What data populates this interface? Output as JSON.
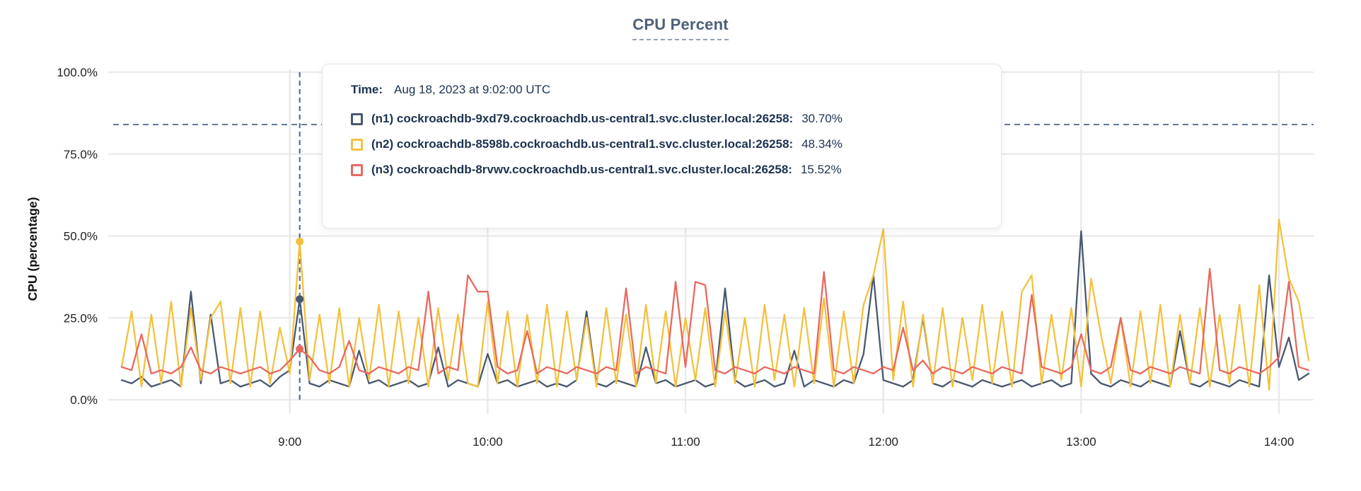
{
  "title": {
    "text": "CPU Percent"
  },
  "tooltip": {
    "time_label": "Time:",
    "time_value": "Aug 18, 2023 at 9:02:00 UTC",
    "series": [
      {
        "label": "(n1) cockroachdb-9xd79.cockroachdb.us-central1.svc.cluster.local:26258:",
        "value": "30.70%",
        "color": "#485870"
      },
      {
        "label": "(n2) cockroachdb-8598b.cockroachdb.us-central1.svc.cluster.local:26258:",
        "value": "48.34%",
        "color": "#f3c13d"
      },
      {
        "label": "(n3) cockroachdb-8rvwv.cockroachdb.us-central1.svc.cluster.local:26258:",
        "value": "15.52%",
        "color": "#e8685f"
      }
    ]
  },
  "chart_data": {
    "type": "line",
    "title": "CPU Percent",
    "xlabel": "",
    "ylabel": "CPU (percentage)",
    "ylim": [
      0,
      100
    ],
    "grid": true,
    "legend_position": "tooltip-overlay",
    "y_ticks": [
      {
        "value": 100,
        "label": "100.0%"
      },
      {
        "value": 75,
        "label": "75.0%"
      },
      {
        "value": 50,
        "label": "50.0%"
      },
      {
        "value": 25,
        "label": "25.0%"
      },
      {
        "value": 0,
        "label": "0.0%"
      }
    ],
    "x_ticks": [
      {
        "minutes": 540,
        "label": "9:00"
      },
      {
        "minutes": 600,
        "label": "10:00"
      },
      {
        "minutes": 660,
        "label": "11:00"
      },
      {
        "minutes": 720,
        "label": "12:00"
      },
      {
        "minutes": 780,
        "label": "13:00"
      },
      {
        "minutes": 840,
        "label": "14:00"
      }
    ],
    "x_start_minutes": 489,
    "x_step_minutes": 3,
    "threshold_line_percent": 84,
    "hover": {
      "index": 18,
      "time_label": "Aug 18, 2023 at 9:02:00 UTC"
    },
    "series": [
      {
        "id": "n1",
        "host": "cockroachdb-9xd79.cockroachdb.us-central1.svc.cluster.local:26258",
        "color": "#485870",
        "hover_value_percent": 30.7,
        "values": [
          6,
          5,
          7,
          4,
          5,
          6,
          4,
          33,
          5,
          26,
          5,
          6,
          4,
          5,
          6,
          4,
          7,
          9,
          30.7,
          5,
          4,
          6,
          5,
          4,
          15,
          5,
          6,
          4,
          5,
          6,
          4,
          5,
          16,
          4,
          6,
          5,
          4,
          14,
          5,
          6,
          4,
          5,
          6,
          4,
          5,
          4,
          6,
          27,
          5,
          4,
          6,
          5,
          4,
          16,
          5,
          6,
          4,
          5,
          6,
          4,
          5,
          34,
          6,
          4,
          5,
          6,
          4,
          5,
          15,
          4,
          6,
          5,
          4,
          6,
          5,
          14,
          38,
          6,
          5,
          4,
          6,
          25,
          5,
          4,
          6,
          5,
          4,
          6,
          5,
          4,
          5,
          6,
          4,
          5,
          6,
          4,
          5,
          51.5,
          8,
          5,
          4,
          6,
          5,
          4,
          6,
          5,
          4,
          21,
          5,
          4,
          6,
          5,
          4,
          6,
          5,
          4,
          38,
          10,
          19,
          6,
          8
        ]
      },
      {
        "id": "n2",
        "host": "cockroachdb-8598b.cockroachdb.us-central1.svc.cluster.local:26258",
        "color": "#f3c13d",
        "hover_value_percent": 48.34,
        "values": [
          10,
          27,
          4,
          26,
          5,
          30,
          4,
          28,
          6,
          25,
          30,
          5,
          28,
          4,
          27,
          5,
          22,
          8,
          48.3,
          6,
          26,
          5,
          28,
          4,
          25,
          6,
          29,
          4,
          27,
          5,
          25,
          4,
          28,
          6,
          26,
          5,
          4,
          30,
          5,
          27,
          4,
          26,
          5,
          29,
          4,
          27,
          6,
          25,
          4,
          28,
          5,
          26,
          4,
          29,
          5,
          27,
          4,
          25,
          6,
          28,
          4,
          27,
          5,
          25,
          4,
          29,
          6,
          26,
          4,
          28,
          5,
          31,
          4,
          27,
          5,
          29,
          38,
          52,
          6,
          30,
          4,
          26,
          5,
          28,
          4,
          25,
          6,
          29,
          5,
          27,
          4,
          33,
          38,
          5,
          26,
          6,
          28,
          4,
          37,
          20,
          5,
          25,
          4,
          27,
          5,
          29,
          4,
          26,
          5,
          28,
          4,
          26,
          5,
          29,
          4,
          35,
          3,
          55,
          37,
          30,
          12
        ]
      },
      {
        "id": "n3",
        "host": "cockroachdb-8rvwv.cockroachdb.us-central1.svc.cluster.local:26258",
        "color": "#e8685f",
        "hover_value_percent": 15.52,
        "values": [
          10,
          9,
          20,
          8,
          9,
          8,
          10,
          16,
          9,
          8,
          10,
          9,
          8,
          9,
          10,
          8,
          9,
          12,
          15.5,
          13,
          9,
          8,
          10,
          18,
          9,
          8,
          10,
          9,
          8,
          10,
          9,
          33,
          8,
          10,
          9,
          38,
          33,
          33,
          10,
          8,
          9,
          21,
          8,
          10,
          9,
          8,
          10,
          9,
          8,
          10,
          9,
          34,
          8,
          10,
          9,
          8,
          36,
          10,
          36,
          35,
          9,
          8,
          10,
          9,
          8,
          10,
          9,
          8,
          10,
          9,
          8,
          39,
          9,
          8,
          10,
          9,
          8,
          10,
          9,
          22,
          9,
          12,
          8,
          10,
          9,
          8,
          10,
          9,
          8,
          10,
          9,
          8,
          32,
          10,
          9,
          8,
          10,
          20,
          9,
          8,
          10,
          25,
          9,
          8,
          10,
          9,
          8,
          10,
          9,
          8,
          40,
          9,
          8,
          10,
          9,
          8,
          10,
          13,
          36,
          10,
          9
        ]
      }
    ],
    "annotations": {
      "threshold_line_style": "dashed",
      "hover_line_style": "dashed-vertical"
    }
  },
  "colors": {
    "grid": "#ececec",
    "dashed_guides": "#56718f",
    "title": "#4e5f7a",
    "tooltip_text": "#1d3250",
    "axis_text": "#1f1f1f"
  }
}
